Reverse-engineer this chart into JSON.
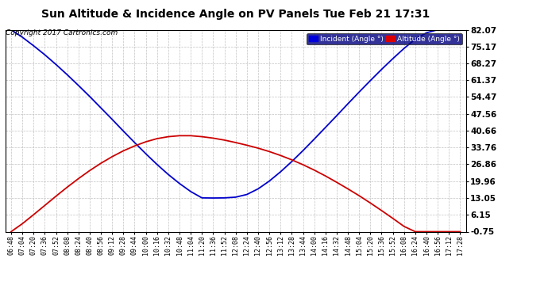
{
  "title": "Sun Altitude & Incidence Angle on PV Panels Tue Feb 21 17:31",
  "copyright": "Copyright 2017 Cartronics.com",
  "legend_items": [
    {
      "label": "Incident (Angle °)",
      "color": "#0000dd"
    },
    {
      "label": "Altitude (Angle °)",
      "color": "#dd0000"
    }
  ],
  "yticks": [
    -0.75,
    6.15,
    13.05,
    19.96,
    26.86,
    33.76,
    40.66,
    47.56,
    54.47,
    61.37,
    68.27,
    75.17,
    82.07
  ],
  "ylim_min": -0.75,
  "ylim_max": 82.07,
  "background_color": "#ffffff",
  "grid_color": "#bbbbbb",
  "x_times": [
    "06:48",
    "07:04",
    "07:20",
    "07:36",
    "07:52",
    "08:08",
    "08:24",
    "08:40",
    "08:56",
    "09:12",
    "09:28",
    "09:44",
    "10:00",
    "10:16",
    "10:32",
    "10:48",
    "11:04",
    "11:20",
    "11:36",
    "11:52",
    "12:08",
    "12:24",
    "12:40",
    "12:56",
    "13:12",
    "13:28",
    "13:44",
    "14:00",
    "14:16",
    "14:32",
    "14:48",
    "15:04",
    "15:20",
    "15:36",
    "15:52",
    "16:08",
    "16:24",
    "16:40",
    "16:56",
    "17:12",
    "17:28"
  ],
  "incident_values": [
    82.07,
    79.0,
    75.5,
    71.8,
    67.8,
    63.6,
    59.2,
    54.7,
    50.0,
    45.3,
    40.5,
    35.8,
    31.2,
    26.8,
    22.7,
    19.0,
    15.7,
    13.1,
    13.05,
    13.1,
    13.4,
    14.5,
    16.8,
    20.0,
    23.8,
    28.0,
    32.5,
    37.2,
    42.0,
    46.8,
    51.7,
    56.5,
    61.2,
    65.8,
    70.2,
    74.4,
    78.2,
    80.8,
    82.07,
    82.07,
    82.07
  ],
  "altitude_values": [
    -0.75,
    2.5,
    6.2,
    10.0,
    13.8,
    17.5,
    21.0,
    24.3,
    27.3,
    30.0,
    32.4,
    34.4,
    36.1,
    37.4,
    38.2,
    38.6,
    38.6,
    38.2,
    37.6,
    36.8,
    35.8,
    34.7,
    33.5,
    32.1,
    30.5,
    28.7,
    26.7,
    24.5,
    22.1,
    19.5,
    16.8,
    14.0,
    11.0,
    7.9,
    4.7,
    1.4,
    -0.75,
    -0.75,
    -0.75,
    -0.75,
    -0.75
  ],
  "line_width": 1.3,
  "incident_color": "#0000cc",
  "altitude_color": "#cc0000"
}
